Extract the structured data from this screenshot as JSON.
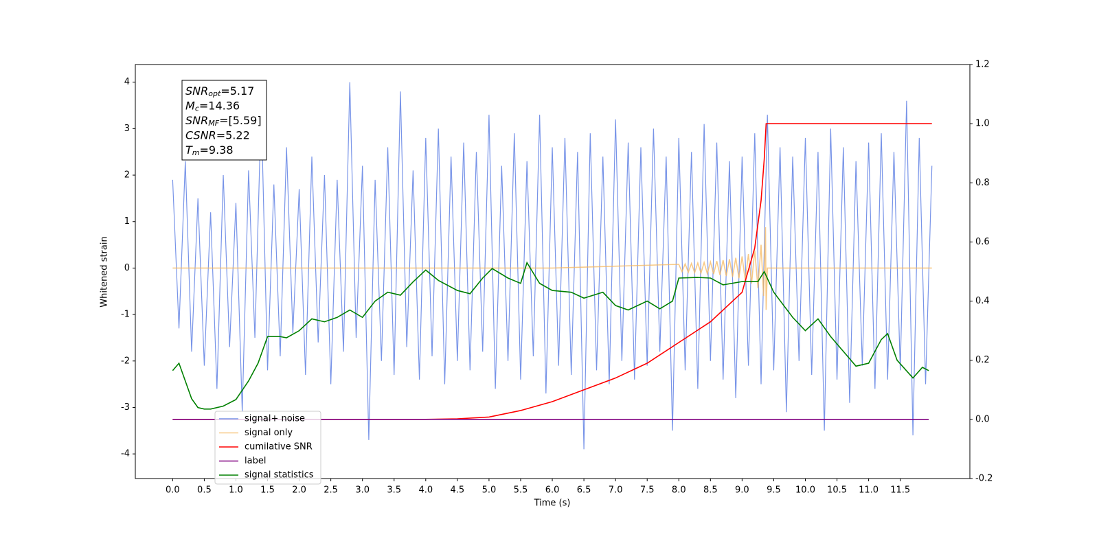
{
  "chart_data": {
    "type": "line",
    "xlabel": "Time (s)",
    "ylabel": "Whitened strain",
    "xlim": [
      -0.59,
      12.6
    ],
    "ylim": [
      -4.53,
      4.38
    ],
    "y2lim": [
      -0.2,
      1.2
    ],
    "xticks": [
      {
        "value": 0,
        "label": "0.0"
      },
      0.5,
      {
        "value": 1,
        "label": "1.0"
      },
      1.5,
      {
        "value": 2,
        "label": "2.0"
      },
      2.5,
      {
        "value": 3,
        "label": "3.0"
      },
      3.5,
      {
        "value": 4,
        "label": "4.0"
      },
      4.5,
      {
        "value": 5,
        "label": "5.0"
      },
      5.5,
      {
        "value": 6,
        "label": "6.0"
      },
      6.5,
      {
        "value": 7,
        "label": "7.0"
      },
      7.5,
      {
        "value": 8,
        "label": "8.0"
      },
      8.5,
      {
        "value": 9,
        "label": "9.0"
      },
      9.5,
      {
        "value": 10,
        "label": "10.0"
      },
      10.5,
      {
        "value": 11,
        "label": "11.0"
      },
      11.5
    ],
    "yticks": [
      -4,
      -3,
      -2,
      -1,
      0,
      1,
      2,
      3,
      4
    ],
    "y2ticks": [
      -0.2,
      {
        "value": 0,
        "label": "0.0"
      },
      0.2,
      0.4,
      0.6,
      0.8,
      {
        "value": 1,
        "label": "1.0"
      },
      1.2
    ],
    "legend": "lower left",
    "annotations": [
      {
        "name": "SNR",
        "sub": "opt",
        "text": "=5.17"
      },
      {
        "name": "M",
        "sub": "c",
        "text": "=14.36"
      },
      {
        "name": "SNR",
        "sub": "MF",
        "text": "=[5.59]"
      },
      {
        "name": "CSNR",
        "sub": null,
        "text": "=5.22"
      },
      {
        "name": "T",
        "sub": "m",
        "text": "=9.38"
      }
    ],
    "series": [
      {
        "name": "signal+ noise",
        "color": "#7894e8",
        "x": [
          0,
          0.1,
          0.2,
          0.3,
          0.4,
          0.5,
          0.6,
          0.7,
          0.8,
          0.9,
          1,
          1.1,
          1.2,
          1.3,
          1.4,
          1.5,
          1.6,
          1.7,
          1.8,
          1.9,
          2,
          2.1,
          2.2,
          2.3,
          2.4,
          2.5,
          2.6,
          2.7,
          2.8,
          2.9,
          3,
          3.1,
          3.2,
          3.3,
          3.4,
          3.5,
          3.6,
          3.7,
          3.8,
          3.9,
          4,
          4.1,
          4.2,
          4.3,
          4.4,
          4.5,
          4.6,
          4.7,
          4.8,
          4.9,
          5,
          5.1,
          5.2,
          5.3,
          5.4,
          5.5,
          5.6,
          5.7,
          5.8,
          5.9,
          6,
          6.1,
          6.2,
          6.3,
          6.4,
          6.5,
          6.6,
          6.7,
          6.8,
          6.9,
          7,
          7.1,
          7.2,
          7.3,
          7.4,
          7.5,
          7.6,
          7.7,
          7.8,
          7.9,
          8,
          8.1,
          8.2,
          8.3,
          8.4,
          8.5,
          8.6,
          8.7,
          8.8,
          8.9,
          9,
          9.1,
          9.2,
          9.3,
          9.4,
          9.5,
          9.6,
          9.7,
          9.8,
          9.9,
          10,
          10.1,
          10.2,
          10.3,
          10.4,
          10.5,
          10.6,
          10.7,
          10.8,
          10.9,
          11,
          11.1,
          11.2,
          11.3,
          11.4,
          11.5,
          11.6,
          11.7,
          11.8,
          11.9,
          12
        ],
        "values": [
          1.9,
          -1.3,
          2.3,
          -1.8,
          1.5,
          -2.1,
          1.2,
          -2.6,
          2.0,
          -1.7,
          1.4,
          -3.1,
          2.1,
          -1.5,
          3.5,
          -2.2,
          1.8,
          -1.9,
          2.6,
          -1.4,
          1.7,
          -2.3,
          2.4,
          -1.6,
          2.0,
          -2.5,
          1.9,
          -1.8,
          4.0,
          -1.5,
          2.2,
          -3.7,
          1.9,
          -2.0,
          2.6,
          -2.3,
          3.8,
          -1.7,
          2.1,
          -2.4,
          2.8,
          -1.9,
          3.0,
          -2.5,
          2.4,
          -2.0,
          2.7,
          -2.2,
          2.5,
          -1.8,
          3.3,
          -2.6,
          2.2,
          -2.0,
          2.9,
          -2.4,
          2.3,
          -1.9,
          3.3,
          -2.7,
          2.6,
          -2.1,
          2.8,
          -2.3,
          2.5,
          -3.9,
          2.9,
          -2.2,
          2.4,
          -2.5,
          3.2,
          -2.0,
          2.7,
          -2.4,
          2.6,
          -2.1,
          3.0,
          -1.8,
          2.4,
          -3.5,
          2.8,
          -2.2,
          2.5,
          -2.6,
          3.1,
          -2.0,
          2.7,
          -2.4,
          2.3,
          -2.8,
          2.4,
          -2.1,
          2.9,
          -2.5,
          3.3,
          -2.2,
          2.6,
          -3.1,
          2.4,
          -2.0,
          2.8,
          -2.3,
          2.5,
          -3.5,
          3.0,
          -2.4,
          2.6,
          -2.9,
          2.3,
          -2.1,
          2.7,
          -2.6,
          2.9,
          -2.4,
          2.5,
          -2.2,
          3.6,
          -3.6,
          2.8,
          -2.5,
          2.2
        ]
      },
      {
        "name": "signal only",
        "color": "#f5b860",
        "x": [
          0,
          6,
          8,
          8.05,
          8.1,
          8.15,
          8.2,
          8.25,
          8.3,
          8.35,
          8.4,
          8.45,
          8.5,
          8.55,
          8.6,
          8.65,
          8.7,
          8.75,
          8.8,
          8.85,
          8.9,
          8.95,
          9,
          9.05,
          9.1,
          9.15,
          9.2,
          9.25,
          9.3,
          9.34,
          9.37,
          9.38,
          9.4,
          12
        ],
        "values": [
          0,
          0,
          0.08,
          -0.08,
          0.09,
          -0.09,
          0.1,
          -0.1,
          0.11,
          -0.11,
          0.12,
          -0.12,
          0.13,
          -0.13,
          0.15,
          -0.15,
          0.17,
          -0.17,
          0.19,
          -0.19,
          0.22,
          -0.22,
          0.25,
          -0.27,
          0.3,
          -0.33,
          0.38,
          -0.43,
          0.5,
          -0.6,
          0.88,
          -0.9,
          0,
          0
        ]
      },
      {
        "name": "cumilative SNR",
        "color": "#ff0000",
        "axis": "y2",
        "x": [
          0,
          4,
          4.5,
          5,
          5.5,
          6,
          6.5,
          7,
          7.5,
          8,
          8.5,
          9,
          9.2,
          9.3,
          9.35,
          9.38,
          12
        ],
        "values": [
          0,
          0,
          0.002,
          0.008,
          0.03,
          0.06,
          0.1,
          0.14,
          0.19,
          0.26,
          0.33,
          0.43,
          0.58,
          0.74,
          0.88,
          1.0,
          1.0
        ]
      },
      {
        "name": "label",
        "color": "#800080",
        "axis": "y2",
        "x": [
          0,
          11.95
        ],
        "values": [
          0,
          0
        ]
      },
      {
        "name": "signal statistics",
        "color": "#008000",
        "axis": "y2",
        "x": [
          0,
          0.1,
          0.2,
          0.3,
          0.4,
          0.5,
          0.6,
          0.8,
          1,
          1.2,
          1.35,
          1.5,
          1.7,
          1.8,
          2,
          2.2,
          2.4,
          2.6,
          2.8,
          3,
          3.2,
          3.4,
          3.6,
          3.8,
          4,
          4.2,
          4.5,
          4.7,
          4.9,
          5.05,
          5.3,
          5.5,
          5.6,
          5.8,
          6,
          6.3,
          6.5,
          6.8,
          7,
          7.2,
          7.5,
          7.7,
          7.9,
          8,
          8.3,
          8.5,
          8.7,
          9,
          9.25,
          9.35,
          9.5,
          9.8,
          10,
          10.2,
          10.4,
          10.6,
          10.8,
          11,
          11.2,
          11.3,
          11.45,
          11.7,
          11.85,
          11.95
        ],
        "values": [
          0.165,
          0.19,
          0.13,
          0.07,
          0.04,
          0.035,
          0.035,
          0.045,
          0.067,
          0.13,
          0.19,
          0.28,
          0.28,
          0.276,
          0.3,
          0.34,
          0.33,
          0.345,
          0.37,
          0.345,
          0.4,
          0.43,
          0.42,
          0.465,
          0.505,
          0.47,
          0.436,
          0.425,
          0.478,
          0.51,
          0.478,
          0.46,
          0.53,
          0.46,
          0.436,
          0.43,
          0.41,
          0.43,
          0.385,
          0.37,
          0.4,
          0.374,
          0.4,
          0.478,
          0.48,
          0.478,
          0.455,
          0.466,
          0.466,
          0.5,
          0.43,
          0.345,
          0.3,
          0.34,
          0.28,
          0.23,
          0.18,
          0.19,
          0.27,
          0.29,
          0.2,
          0.14,
          0.176,
          0.165
        ]
      }
    ]
  }
}
